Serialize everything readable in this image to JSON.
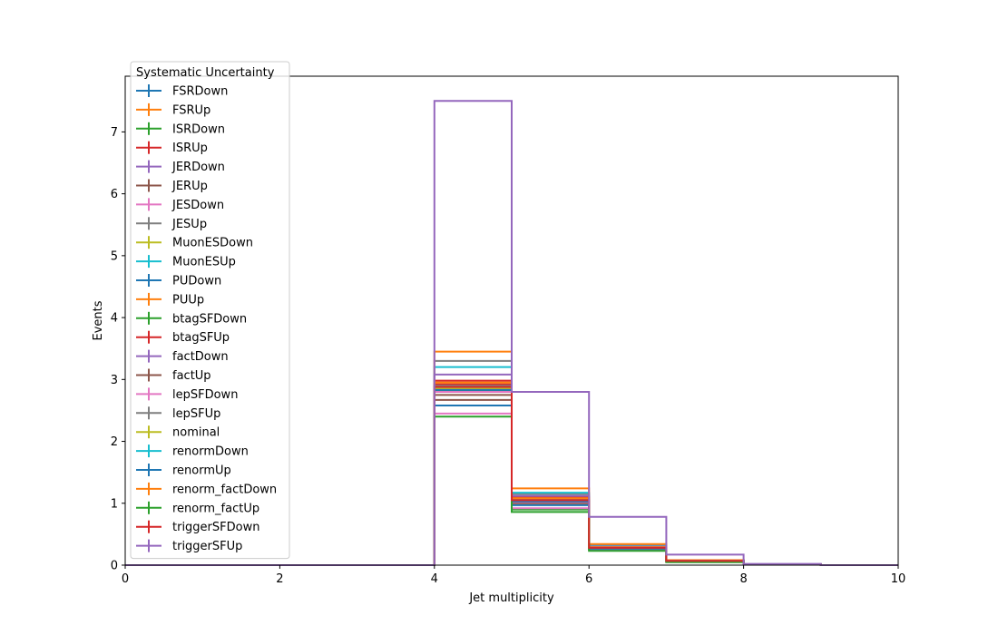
{
  "chart_data": {
    "type": "step-histogram",
    "title": "",
    "xlabel": "Jet multiplicity",
    "ylabel": "Events",
    "xlim": [
      0,
      10
    ],
    "ylim": [
      0,
      7.9
    ],
    "xticks": [
      "0",
      "2",
      "4",
      "6",
      "8",
      "10"
    ],
    "yticks": [
      "0",
      "1",
      "2",
      "3",
      "4",
      "5",
      "6",
      "7"
    ],
    "bin_edges": [
      0,
      1,
      2,
      3,
      4,
      5,
      6,
      7,
      8,
      9,
      10
    ],
    "grid": false,
    "legend": {
      "title": "Systematic Uncertainty",
      "placement": "upper-left"
    },
    "series": [
      {
        "name": "FSRDown",
        "color": "#1f77b4",
        "values": [
          0,
          0,
          0,
          0,
          2.85,
          1.05,
          0.28,
          0.07,
          0.01,
          0
        ]
      },
      {
        "name": "FSRUp",
        "color": "#ff7f0e",
        "values": [
          0,
          0,
          0,
          0,
          2.95,
          1.1,
          0.3,
          0.07,
          0.01,
          0
        ]
      },
      {
        "name": "ISRDown",
        "color": "#2ca02c",
        "values": [
          0,
          0,
          0,
          0,
          2.8,
          0.9,
          0.25,
          0.05,
          0.01,
          0
        ]
      },
      {
        "name": "ISRUp",
        "color": "#d62728",
        "values": [
          0,
          0,
          0,
          0,
          2.98,
          1.1,
          0.29,
          0.07,
          0.01,
          0
        ]
      },
      {
        "name": "JERDown",
        "color": "#9467bd",
        "values": [
          0,
          0,
          0,
          0,
          2.9,
          1.05,
          0.28,
          0.07,
          0.01,
          0
        ]
      },
      {
        "name": "JERUp",
        "color": "#8c564b",
        "values": [
          0,
          0,
          0,
          0,
          2.67,
          1.0,
          0.27,
          0.06,
          0.01,
          0
        ]
      },
      {
        "name": "JESDown",
        "color": "#e377c2",
        "values": [
          0,
          0,
          0,
          0,
          2.45,
          0.92,
          0.25,
          0.06,
          0.01,
          0
        ]
      },
      {
        "name": "JESUp",
        "color": "#7f7f7f",
        "values": [
          0,
          0,
          0,
          0,
          3.3,
          1.15,
          0.32,
          0.08,
          0.01,
          0
        ]
      },
      {
        "name": "MuonESDown",
        "color": "#bcbd22",
        "values": [
          0,
          0,
          0,
          0,
          2.85,
          1.03,
          0.28,
          0.07,
          0.01,
          0
        ]
      },
      {
        "name": "MuonESUp",
        "color": "#17becf",
        "values": [
          0,
          0,
          0,
          0,
          3.2,
          1.17,
          0.31,
          0.08,
          0.01,
          0
        ]
      },
      {
        "name": "PUDown",
        "color": "#1f77b4",
        "values": [
          0,
          0,
          0,
          0,
          2.58,
          0.97,
          0.26,
          0.06,
          0.01,
          0
        ]
      },
      {
        "name": "PUUp",
        "color": "#ff7f0e",
        "values": [
          0,
          0,
          0,
          0,
          3.45,
          1.24,
          0.34,
          0.08,
          0.01,
          0
        ]
      },
      {
        "name": "btagSFDown",
        "color": "#2ca02c",
        "values": [
          0,
          0,
          0,
          0,
          2.82,
          1.02,
          0.27,
          0.06,
          0.01,
          0
        ]
      },
      {
        "name": "btagSFUp",
        "color": "#d62728",
        "values": [
          0,
          0,
          0,
          0,
          2.92,
          1.08,
          0.29,
          0.07,
          0.01,
          0
        ]
      },
      {
        "name": "factDown",
        "color": "#9467bd",
        "values": [
          0,
          0,
          0,
          0,
          3.08,
          1.12,
          0.3,
          0.07,
          0.01,
          0
        ]
      },
      {
        "name": "factUp",
        "color": "#8c564b",
        "values": [
          0,
          0,
          0,
          0,
          2.75,
          1.0,
          0.27,
          0.06,
          0.01,
          0
        ]
      },
      {
        "name": "lepSFDown",
        "color": "#e377c2",
        "values": [
          0,
          0,
          0,
          0,
          2.8,
          1.02,
          0.27,
          0.06,
          0.01,
          0
        ]
      },
      {
        "name": "lepSFUp",
        "color": "#7f7f7f",
        "values": [
          0,
          0,
          0,
          0,
          2.9,
          1.06,
          0.28,
          0.07,
          0.01,
          0
        ]
      },
      {
        "name": "nominal",
        "color": "#bcbd22",
        "values": [
          0,
          0,
          0,
          0,
          2.85,
          1.04,
          0.28,
          0.07,
          0.01,
          0
        ]
      },
      {
        "name": "renormDown",
        "color": "#17becf",
        "values": [
          0,
          0,
          0,
          0,
          2.88,
          1.05,
          0.28,
          0.07,
          0.01,
          0
        ]
      },
      {
        "name": "renormUp",
        "color": "#1f77b4",
        "values": [
          0,
          0,
          0,
          0,
          2.83,
          1.03,
          0.27,
          0.07,
          0.01,
          0
        ]
      },
      {
        "name": "renorm_factDown",
        "color": "#ff7f0e",
        "values": [
          0,
          0,
          0,
          0,
          2.95,
          1.08,
          0.29,
          0.07,
          0.01,
          0
        ]
      },
      {
        "name": "renorm_factUp",
        "color": "#2ca02c",
        "values": [
          0,
          0,
          0,
          0,
          2.4,
          0.86,
          0.23,
          0.05,
          0.01,
          0
        ]
      },
      {
        "name": "triggerSFDown",
        "color": "#d62728",
        "values": [
          0,
          0,
          0,
          0,
          2.88,
          1.05,
          0.28,
          0.07,
          0.01,
          0
        ]
      },
      {
        "name": "triggerSFUp",
        "color": "#9467bd",
        "values": [
          0,
          0,
          0,
          0,
          7.5,
          2.8,
          0.78,
          0.17,
          0.02,
          0
        ]
      }
    ]
  }
}
